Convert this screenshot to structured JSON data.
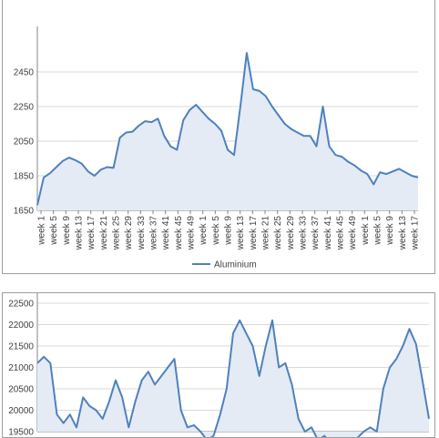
{
  "chart_data": [
    {
      "type": "area",
      "title": "",
      "xlabel": "",
      "ylabel": "",
      "ylim": [
        1650,
        2650
      ],
      "yticks": [
        1650,
        1850,
        2050,
        2250,
        2450
      ],
      "ytick_labels": [
        "1650",
        "1850",
        "2050",
        "2250",
        "2450"
      ],
      "grid": true,
      "legend": "bottom",
      "x_tick_labels": [
        "week 1",
        "week 5",
        "week 9",
        "week 13",
        "week 17",
        "week 21",
        "week 25",
        "week 29",
        "week 33",
        "week 37",
        "week 41",
        "week 45",
        "week 49",
        "week 1",
        "week 5",
        "week 9",
        "week 13",
        "week 17",
        "week 21",
        "week 25",
        "week 29",
        "week 33",
        "week 37",
        "week 41",
        "week 45",
        "week 49",
        "week 1",
        "week 5",
        "week 9",
        "week 13",
        "week 17"
      ],
      "series": [
        {
          "name": "Aluminium",
          "color": "#4f81bd",
          "fill": "#e4ebf5",
          "x": [
            0,
            2,
            4,
            6,
            8,
            10,
            12,
            14,
            16,
            18,
            20,
            22,
            24,
            26,
            28,
            30,
            32,
            34,
            36,
            38,
            40,
            42,
            44,
            46,
            48,
            50,
            52,
            54,
            56,
            58,
            60,
            62,
            64,
            66,
            68,
            70,
            72,
            74,
            76,
            78,
            80,
            82,
            84,
            86,
            88,
            90,
            92,
            94,
            96,
            98,
            100,
            102,
            104,
            106,
            108,
            110,
            112,
            114,
            116,
            118,
            120
          ],
          "values": [
            1680,
            1840,
            1865,
            1900,
            1935,
            1955,
            1940,
            1920,
            1875,
            1850,
            1885,
            1900,
            1895,
            2070,
            2100,
            2105,
            2140,
            2165,
            2160,
            2180,
            2080,
            2020,
            2000,
            2170,
            2230,
            2260,
            2220,
            2180,
            2150,
            2110,
            2000,
            1970,
            2250,
            2560,
            2350,
            2340,
            2310,
            2250,
            2200,
            2150,
            2120,
            2100,
            2080,
            2080,
            2020,
            2250,
            2020,
            1970,
            1960,
            1930,
            1910,
            1880,
            1860,
            1800,
            1870,
            1860,
            1875,
            1890,
            1870,
            1850,
            1840
          ]
        }
      ]
    },
    {
      "type": "area",
      "title": "",
      "xlabel": "",
      "ylabel": "",
      "ylim": [
        19500,
        22500
      ],
      "yticks": [
        19500,
        20000,
        20500,
        21000,
        21500,
        22000,
        22500
      ],
      "ytick_labels": [
        "19500",
        "20000",
        "20500",
        "21000",
        "21500",
        "22000",
        "22500"
      ],
      "grid": true,
      "series": [
        {
          "name": "",
          "color": "#4f81bd",
          "fill": "#e4ebf5",
          "x": [
            0,
            2,
            4,
            6,
            8,
            10,
            12,
            14,
            16,
            18,
            20,
            22,
            24,
            26,
            28,
            30,
            32,
            34,
            36,
            38,
            40,
            42,
            44,
            46,
            48,
            50,
            52,
            54,
            56,
            58,
            60,
            62,
            64,
            66,
            68,
            70,
            72,
            74,
            76,
            78,
            80,
            82,
            84,
            86,
            88,
            90,
            92,
            94,
            96,
            98,
            100,
            102,
            104,
            106,
            108,
            110,
            112,
            114,
            116,
            118,
            120
          ],
          "values": [
            21100,
            21250,
            21100,
            19900,
            19700,
            19900,
            19600,
            20300,
            20100,
            20000,
            19800,
            20200,
            20700,
            20300,
            19600,
            20200,
            20700,
            20900,
            20600,
            20800,
            21000,
            21200,
            20000,
            19600,
            19650,
            19500,
            19300,
            19400,
            19900,
            20500,
            21800,
            22100,
            21800,
            21500,
            20800,
            21500,
            22100,
            21000,
            21100,
            20600,
            19800,
            19500,
            19600,
            19300,
            19400,
            19200,
            19300,
            19100,
            19200,
            19350,
            19500,
            19600,
            19500,
            20500,
            21000,
            21200,
            21500,
            21900,
            21550,
            20700,
            19800
          ]
        }
      ]
    }
  ]
}
